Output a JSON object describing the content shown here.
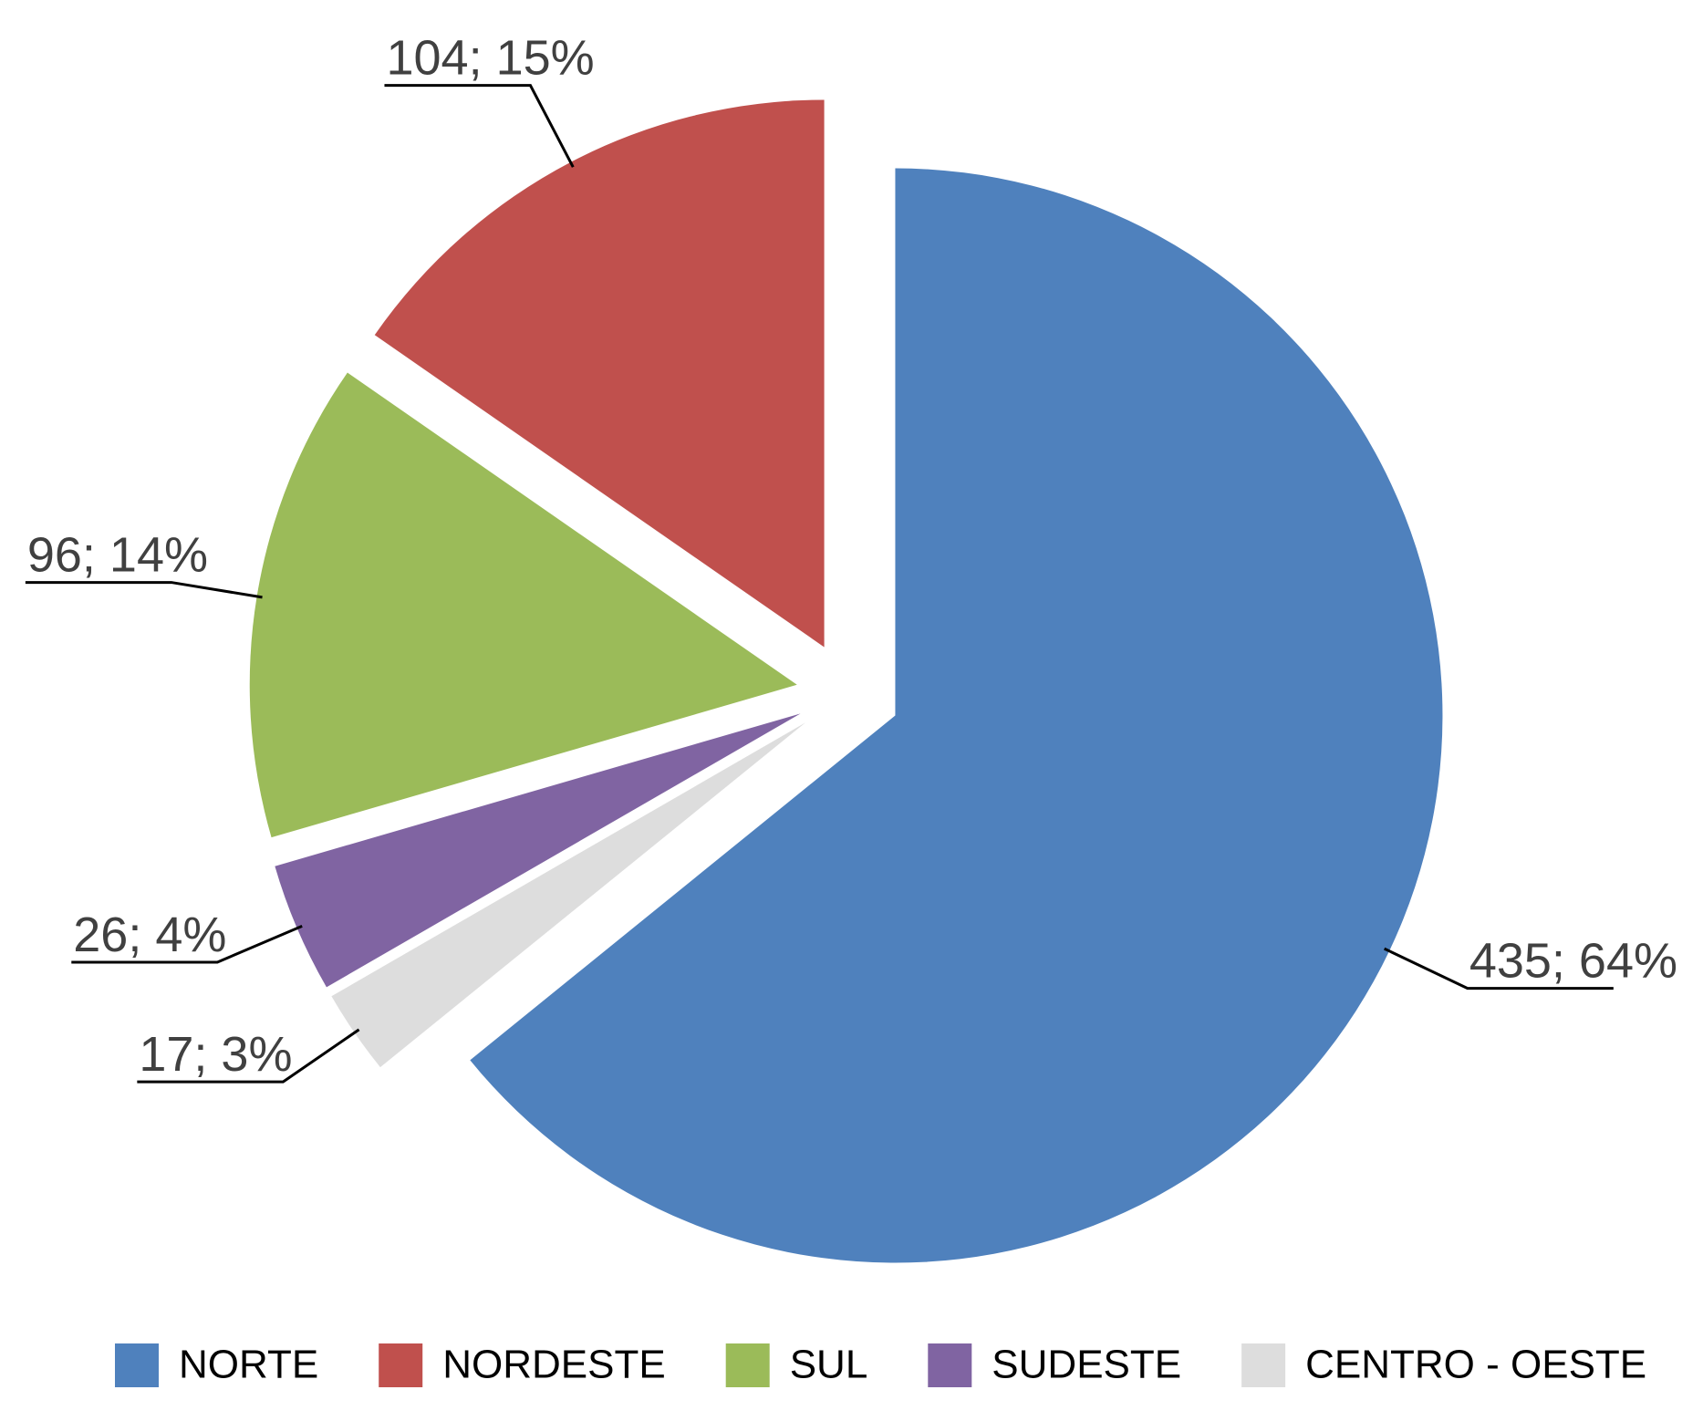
{
  "chart_data": {
    "type": "pie",
    "categories": [
      "NORTE",
      "NORDESTE",
      "SUL",
      "SUDESTE",
      "CENTRO - OESTE"
    ],
    "values": [
      435,
      104,
      96,
      26,
      17
    ],
    "value_labels": [
      "435; 64%",
      "104; 15%",
      "96; 14%",
      "26; 4%",
      "17; 3%"
    ],
    "colors": [
      "#4f81bd",
      "#c0504d",
      "#9bbb59",
      "#8064a2",
      "#dddddd"
    ],
    "legend": "bottom"
  }
}
